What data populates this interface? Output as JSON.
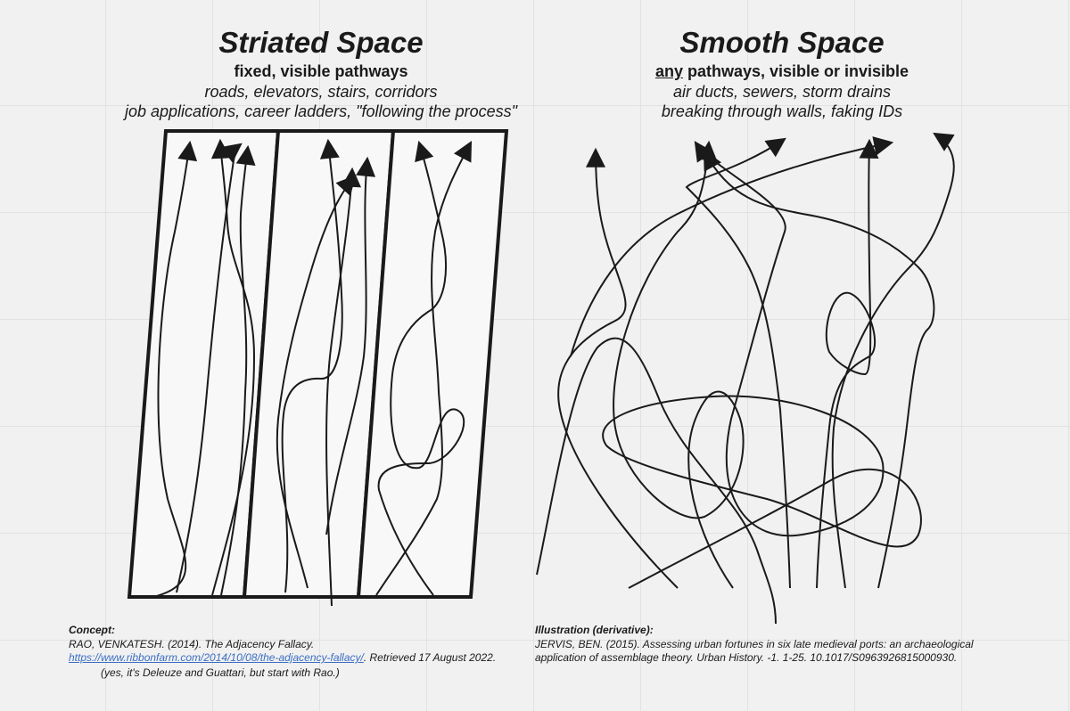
{
  "left": {
    "title": "Striated Space",
    "subtitle": "fixed, visible pathways",
    "examples": [
      "roads, elevators, stairs, corridors",
      "job applications, career ladders, \"following the process\""
    ]
  },
  "right": {
    "title": "Smooth Space",
    "subtitle_emph": "any",
    "subtitle_rest": " pathways, visible or invisible",
    "examples": [
      "air ducts, sewers, storm drains",
      "breaking through walls, faking IDs"
    ]
  },
  "concept": {
    "heading": "Concept:",
    "line1": "RAO, VENKATESH. (2014). The Adjacency Fallacy.",
    "link": "https://www.ribbonfarm.com/2014/10/08/the-adjacency-fallacy/",
    "after_link": ". Retrieved 17 August 2022.",
    "note": "(yes, it's Deleuze and Guattari, but start with Rao.)"
  },
  "illustration": {
    "heading": "Illustration (derivative):",
    "line1": "JERVIS, BEN. (2015). Assessing urban fortunes in six late medieval ports: an archaeological",
    "line2": "application of assemblage theory. Urban History. -1. 1-25. 10.1017/S0963926815000930."
  },
  "colors": {
    "background": "#f1f1f1",
    "ink": "#1a1a1a",
    "link": "#3b6fc4",
    "panel_fill": "#f8f8f8"
  }
}
